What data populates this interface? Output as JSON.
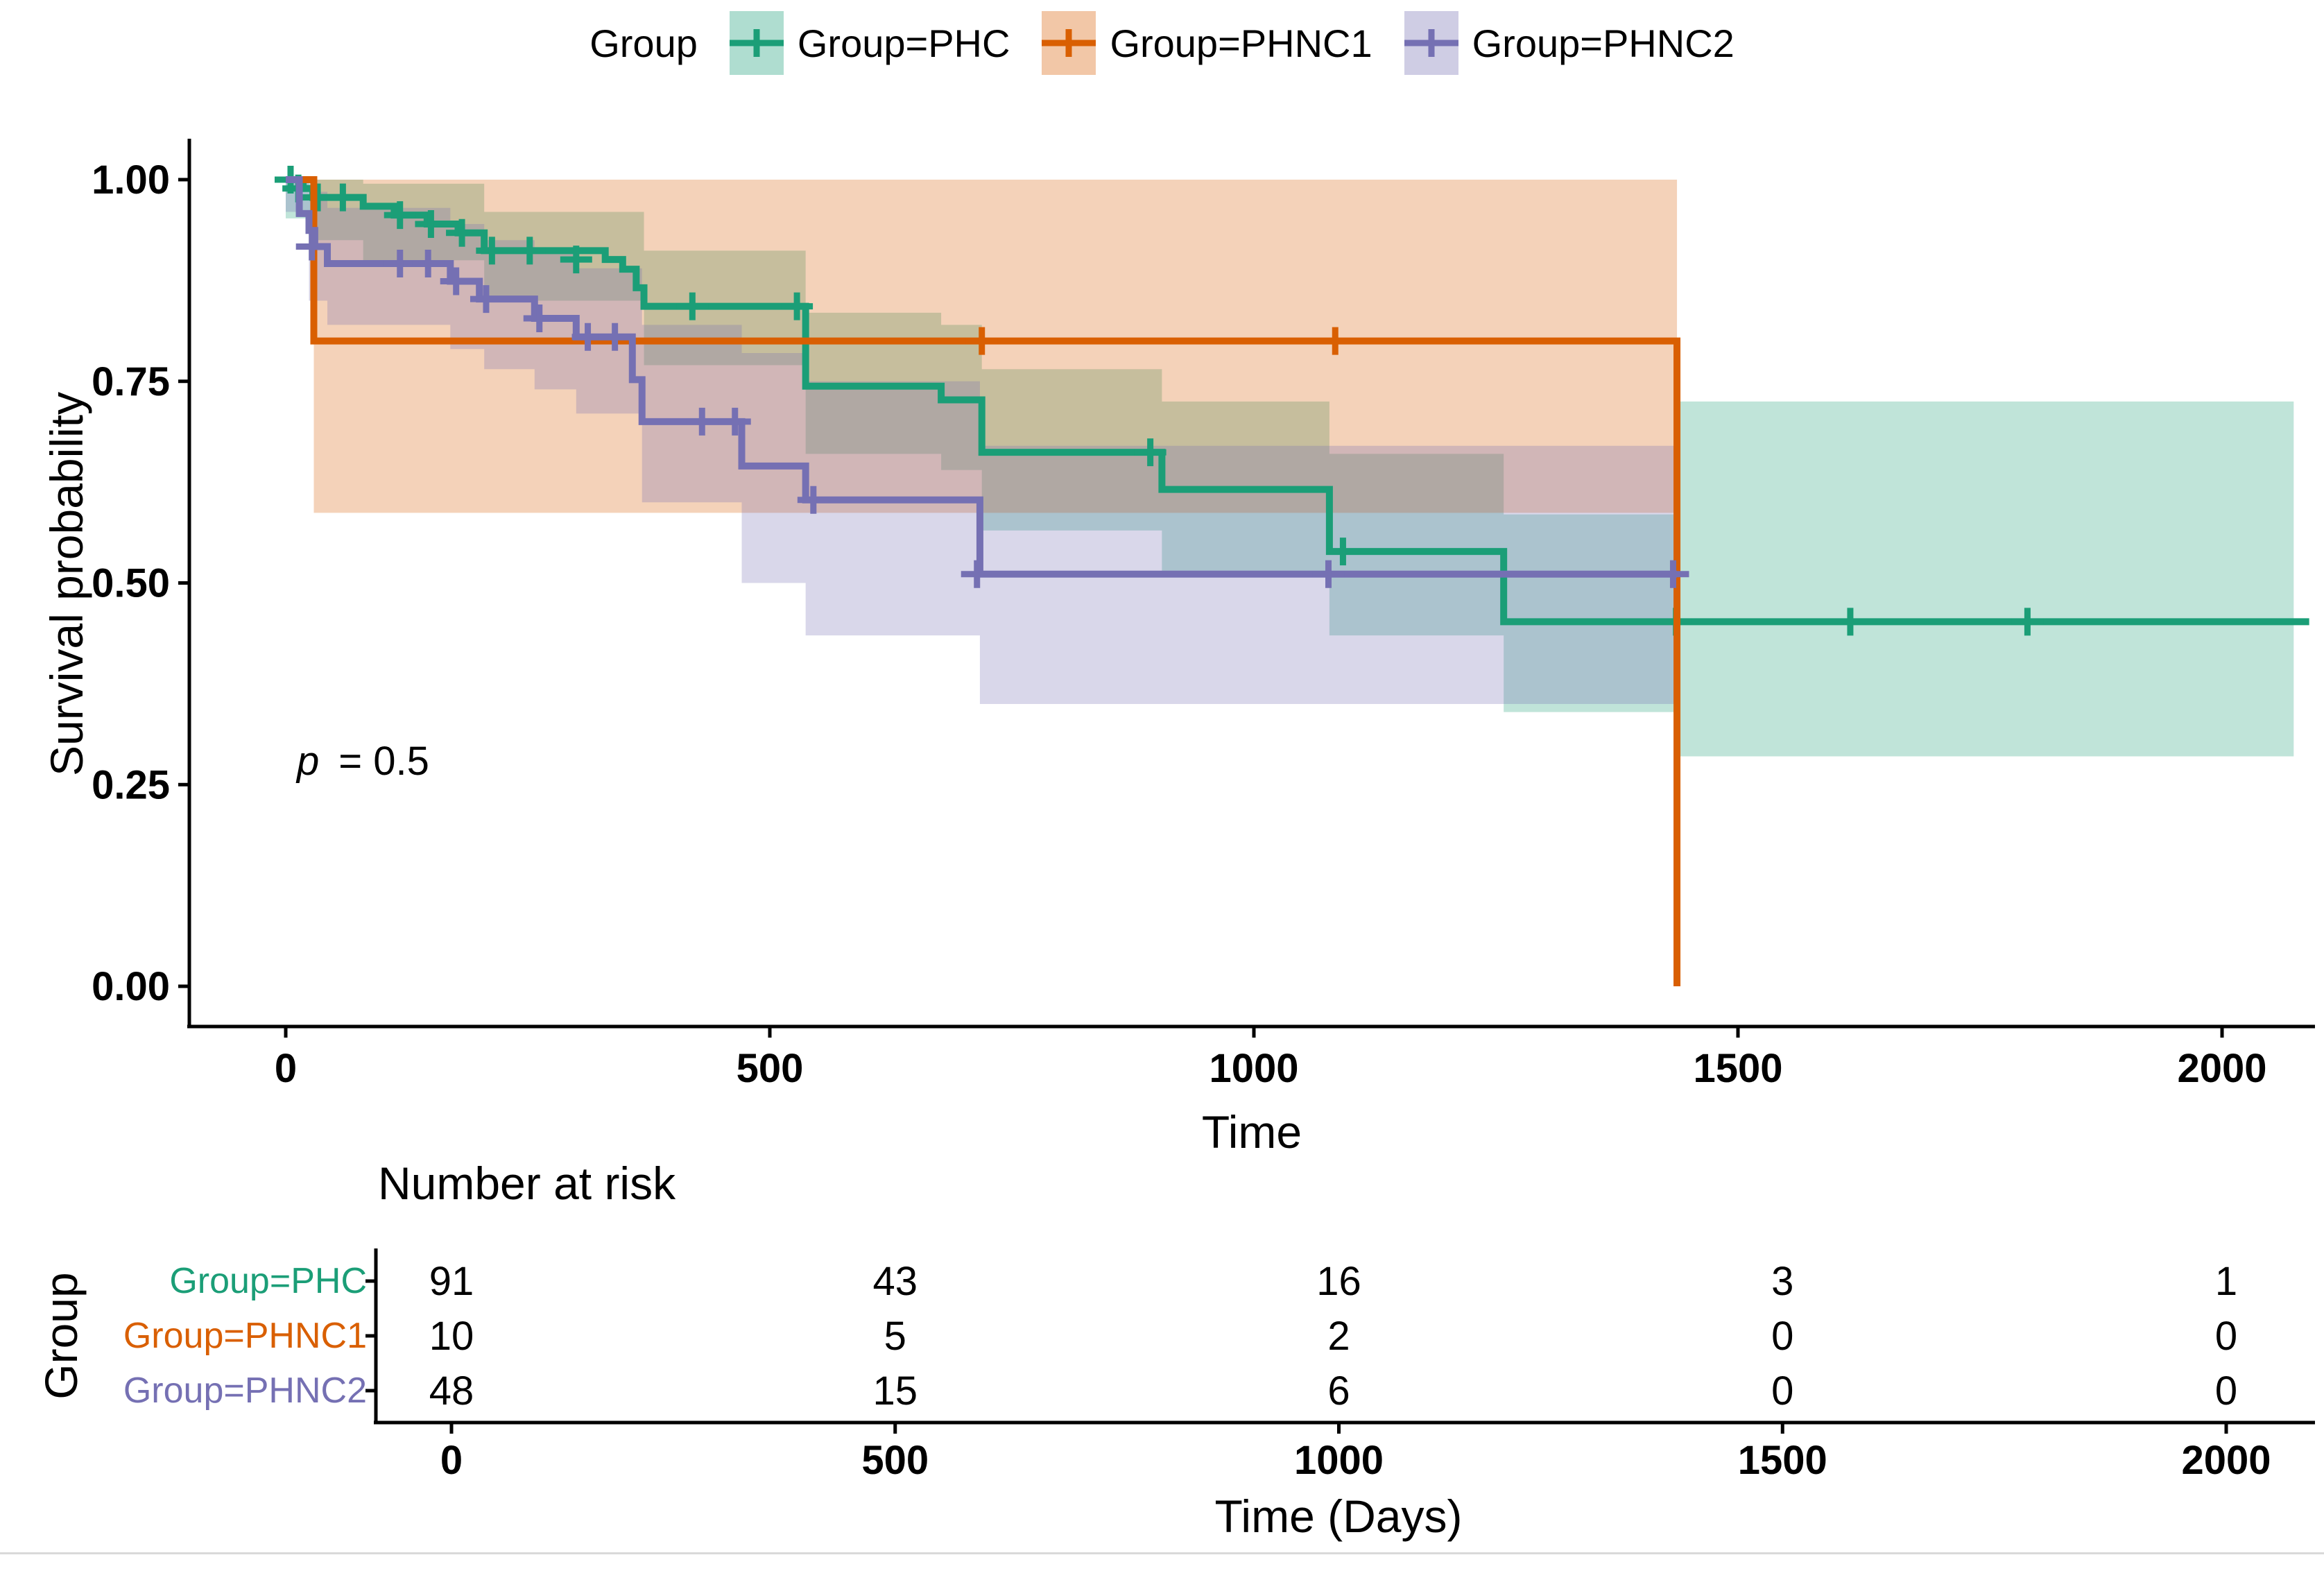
{
  "chart_data": {
    "type": "km_survival",
    "legend": {
      "title": "Group",
      "position": "top"
    },
    "x_axis": {
      "label": "Time",
      "ticks": [
        {
          "value": 0,
          "label": "0"
        },
        {
          "value": 500,
          "label": "500"
        },
        {
          "value": 1000,
          "label": "1000"
        },
        {
          "value": 1500,
          "label": "1500"
        },
        {
          "value": 2000,
          "label": "2000"
        }
      ],
      "range": [
        0,
        2100
      ]
    },
    "y_axis": {
      "label": "Survival probability",
      "ticks": [
        {
          "value": 1.0,
          "label": "1.00"
        },
        {
          "value": 0.75,
          "label": "0.75"
        },
        {
          "value": 0.5,
          "label": "0.50"
        },
        {
          "value": 0.25,
          "label": "0.25"
        },
        {
          "value": 0.0,
          "label": "0.00"
        }
      ],
      "range": [
        0,
        1
      ]
    },
    "annotation": {
      "symbol": "p",
      "text": "= 0.5"
    },
    "series": [
      {
        "name": "Group=PHC",
        "color": "#1B9E77",
        "band_opacity": 0.28,
        "steps": [
          [
            0,
            1.0
          ],
          [
            18,
            0.989
          ],
          [
            28,
            0.978
          ],
          [
            80,
            0.967
          ],
          [
            112,
            0.956
          ],
          [
            146,
            0.945
          ],
          [
            178,
            0.934
          ],
          [
            205,
            0.912
          ],
          [
            330,
            0.901
          ],
          [
            348,
            0.889
          ],
          [
            362,
            0.866
          ],
          [
            370,
            0.843
          ],
          [
            537,
            0.744
          ],
          [
            677,
            0.727
          ],
          [
            719,
            0.662
          ],
          [
            905,
            0.616
          ],
          [
            1078,
            0.539
          ],
          [
            1258,
            0.452
          ]
        ],
        "end": 2090,
        "censors": [
          [
            5,
            1.0
          ],
          [
            13,
            0.989
          ],
          [
            33,
            0.978
          ],
          [
            59,
            0.978
          ],
          [
            118,
            0.956
          ],
          [
            150,
            0.945
          ],
          [
            182,
            0.934
          ],
          [
            213,
            0.912
          ],
          [
            252,
            0.912
          ],
          [
            300,
            0.901
          ],
          [
            420,
            0.843
          ],
          [
            528,
            0.843
          ],
          [
            893,
            0.662
          ],
          [
            1092,
            0.539
          ],
          [
            1436,
            0.452
          ],
          [
            1616,
            0.452
          ],
          [
            1799,
            0.452
          ]
        ],
        "band": [
          [
            0,
            0.952,
            1.0
          ],
          [
            28,
            0.925,
            1.0
          ],
          [
            80,
            0.9,
            0.995
          ],
          [
            205,
            0.85,
            0.96
          ],
          [
            370,
            0.77,
            0.912
          ],
          [
            537,
            0.66,
            0.835
          ],
          [
            677,
            0.64,
            0.82
          ],
          [
            719,
            0.565,
            0.765
          ],
          [
            905,
            0.515,
            0.725
          ],
          [
            1078,
            0.435,
            0.66
          ],
          [
            1258,
            0.34,
            0.585
          ],
          [
            1437,
            0.285,
            0.725
          ]
        ],
        "band_end": 2074
      },
      {
        "name": "Group=PHNC1",
        "color": "#D95F02",
        "band_opacity": 0.28,
        "steps": [
          [
            0,
            1.0
          ],
          [
            29,
            0.8
          ],
          [
            1437,
            0.0
          ]
        ],
        "end": 1437,
        "censors": [
          [
            719,
            0.8
          ],
          [
            1084,
            0.8
          ]
        ],
        "band": [
          [
            29,
            0.587,
            1.0
          ]
        ],
        "band_end": 1437
      },
      {
        "name": "Group=PHNC2",
        "color": "#7570B3",
        "band_opacity": 0.28,
        "steps": [
          [
            0,
            1.0
          ],
          [
            14,
            0.958
          ],
          [
            24,
            0.937
          ],
          [
            30,
            0.917
          ],
          [
            43,
            0.896
          ],
          [
            170,
            0.874
          ],
          [
            200,
            0.852
          ],
          [
            257,
            0.828
          ],
          [
            300,
            0.805
          ],
          [
            358,
            0.752
          ],
          [
            368,
            0.7
          ],
          [
            471,
            0.645
          ],
          [
            537,
            0.603
          ],
          [
            717,
            0.511
          ]
        ],
        "end": 1437,
        "censors": [
          [
            27,
            0.917
          ],
          [
            118,
            0.896
          ],
          [
            147,
            0.896
          ],
          [
            176,
            0.874
          ],
          [
            207,
            0.852
          ],
          [
            262,
            0.828
          ],
          [
            312,
            0.805
          ],
          [
            340,
            0.805
          ],
          [
            430,
            0.7
          ],
          [
            464,
            0.7
          ],
          [
            545,
            0.603
          ],
          [
            714,
            0.511
          ],
          [
            1077,
            0.511
          ],
          [
            1433,
            0.511
          ]
        ],
        "band": [
          [
            0,
            0.96,
            1.0
          ],
          [
            24,
            0.85,
            0.985
          ],
          [
            43,
            0.82,
            0.965
          ],
          [
            170,
            0.79,
            0.945
          ],
          [
            205,
            0.765,
            0.925
          ],
          [
            257,
            0.74,
            0.91
          ],
          [
            300,
            0.71,
            0.89
          ],
          [
            368,
            0.6,
            0.82
          ],
          [
            471,
            0.5,
            0.785
          ],
          [
            537,
            0.435,
            0.75
          ],
          [
            717,
            0.35,
            0.67
          ]
        ],
        "band_end": 1437
      }
    ],
    "risk_table": {
      "title": "Number at risk",
      "ylabel": "Group",
      "xlabel": "Time (Days)",
      "times": [
        0,
        500,
        1000,
        1500,
        2000
      ],
      "tick_labels": [
        "0",
        "500",
        "1000",
        "1500",
        "2000"
      ],
      "rows": [
        {
          "label": "Group=PHC",
          "color": "#1B9E77",
          "counts": [
            "91",
            "43",
            "16",
            "3",
            "1"
          ]
        },
        {
          "label": "Group=PHNC1",
          "color": "#D95F02",
          "counts": [
            "10",
            "5",
            "2",
            "0",
            "0"
          ]
        },
        {
          "label": "Group=PHNC2",
          "color": "#7570B3",
          "counts": [
            "48",
            "15",
            "6",
            "0",
            "0"
          ]
        }
      ]
    }
  }
}
